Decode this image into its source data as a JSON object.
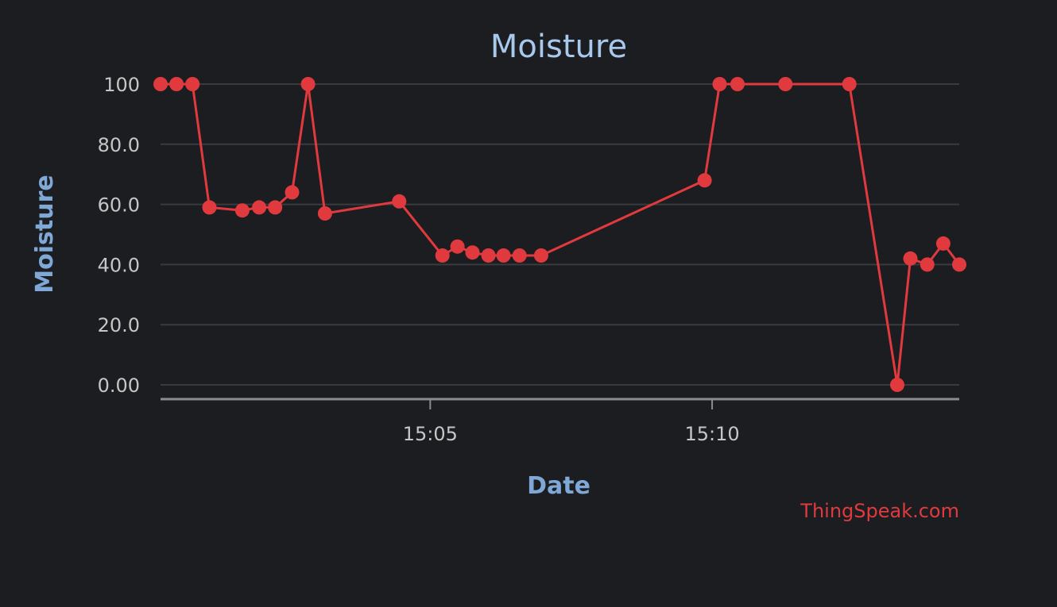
{
  "chart_data": {
    "type": "line",
    "title": "Moisture",
    "xlabel": "Date",
    "ylabel": "Moisture",
    "ylim": [
      0,
      100
    ],
    "y_ticks": [
      {
        "value": 0,
        "label": "0.00"
      },
      {
        "value": 20,
        "label": "20.0"
      },
      {
        "value": 40,
        "label": "40.0"
      },
      {
        "value": 60,
        "label": "60.0"
      },
      {
        "value": 80,
        "label": "80.0"
      },
      {
        "value": 100,
        "label": "100"
      }
    ],
    "x_ticks": [
      "15:05",
      "15:10"
    ],
    "grid": true,
    "legend": "none",
    "credit": "ThingSpeak.com",
    "colors": {
      "series": "#e03a3e",
      "title": "#a8c8ec",
      "axis_title": "#7fa8d6",
      "background": "#1c1d20"
    },
    "series": [
      {
        "x": [
          "15:00:13",
          "15:00:30",
          "15:00:47",
          "15:01:05",
          "15:01:40",
          "15:01:58",
          "15:02:15",
          "15:02:33",
          "15:02:50",
          "15:03:08",
          "15:04:27",
          "15:05:13",
          "15:05:29",
          "15:05:45",
          "15:06:02",
          "15:06:18",
          "15:06:35",
          "15:06:58",
          "15:09:52",
          "15:10:08",
          "15:10:27",
          "15:11:18",
          "15:12:26",
          "15:13:17",
          "15:13:31",
          "15:13:49",
          "15:14:06",
          "15:14:23"
        ],
        "values": [
          100,
          100,
          100,
          59,
          58,
          59,
          59,
          64,
          100,
          57,
          61,
          43,
          46,
          44,
          43,
          43,
          43,
          43,
          68,
          100,
          100,
          100,
          100,
          0,
          42,
          40,
          47,
          40
        ]
      }
    ]
  }
}
